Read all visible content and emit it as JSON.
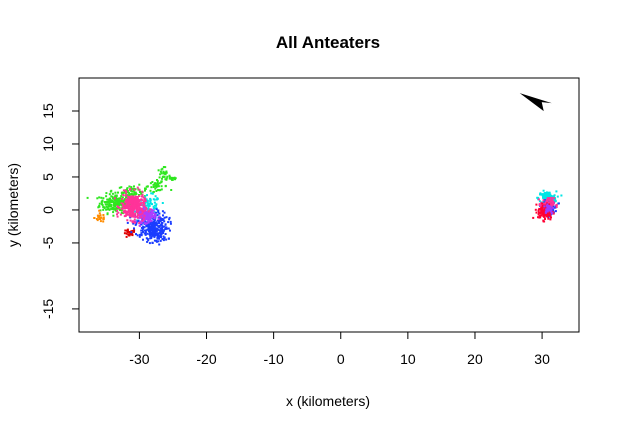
{
  "chart_data": {
    "type": "scatter",
    "title": "All Anteaters",
    "xlabel": "x (kilometers)",
    "ylabel": "y (kilometers)",
    "xlim": [
      -39,
      35.5
    ],
    "ylim": [
      -18.5,
      20
    ],
    "xticks": [
      -30,
      -20,
      -10,
      0,
      10,
      20,
      30
    ],
    "yticks": [
      -15,
      -5,
      0,
      5,
      10,
      15
    ],
    "grid": false,
    "legend": "none",
    "north_arrow": {
      "x": 29.5,
      "y": 16.5,
      "pointing": "north-west"
    },
    "series": [
      {
        "color": "#2ee61f",
        "clusters": [
          {
            "cx": -33.5,
            "cy": 1.0,
            "rx": 2.2,
            "ry": 1.3,
            "n": 220
          },
          {
            "cx": -31.0,
            "cy": 2.8,
            "rx": 2.0,
            "ry": 0.8,
            "n": 60
          },
          {
            "cx": -27.5,
            "cy": 3.6,
            "rx": 1.6,
            "ry": 0.6,
            "n": 30
          },
          {
            "cx": -26.5,
            "cy": 5.0,
            "rx": 1.0,
            "ry": 1.4,
            "n": 35
          },
          {
            "cx": -25.0,
            "cy": 4.8,
            "rx": 0.6,
            "ry": 0.4,
            "n": 12
          }
        ]
      },
      {
        "color": "#ff8c00",
        "clusters": [
          {
            "cx": -35.8,
            "cy": -1.2,
            "rx": 0.8,
            "ry": 0.6,
            "n": 25
          }
        ]
      },
      {
        "color": "#e00000",
        "clusters": [
          {
            "cx": -31.5,
            "cy": -3.6,
            "rx": 0.8,
            "ry": 0.6,
            "n": 25
          }
        ]
      },
      {
        "color": "#00e5e5",
        "clusters": [
          {
            "cx": -28.5,
            "cy": 0.5,
            "rx": 1.5,
            "ry": 1.5,
            "n": 90
          },
          {
            "cx": 30.8,
            "cy": 1.8,
            "rx": 1.2,
            "ry": 0.9,
            "n": 140
          }
        ]
      },
      {
        "color": "#1a3cff",
        "clusters": [
          {
            "cx": -28.2,
            "cy": -2.2,
            "rx": 2.2,
            "ry": 1.8,
            "n": 260
          },
          {
            "cx": -27.5,
            "cy": -3.8,
            "rx": 1.6,
            "ry": 1.0,
            "n": 80
          },
          {
            "cx": 31.2,
            "cy": 0.4,
            "rx": 0.9,
            "ry": 0.9,
            "n": 60
          }
        ]
      },
      {
        "color": "#b03cff",
        "clusters": [
          {
            "cx": -29.0,
            "cy": -0.8,
            "rx": 1.3,
            "ry": 1.0,
            "n": 140
          }
        ]
      },
      {
        "color": "#ff3399",
        "clusters": [
          {
            "cx": -31.0,
            "cy": 0.5,
            "rx": 1.6,
            "ry": 1.8,
            "n": 320
          },
          {
            "cx": 30.8,
            "cy": 0.9,
            "rx": 0.9,
            "ry": 0.8,
            "n": 80
          }
        ]
      },
      {
        "color": "#ff0033",
        "clusters": [
          {
            "cx": 30.5,
            "cy": -0.3,
            "rx": 1.0,
            "ry": 1.1,
            "n": 130
          }
        ]
      },
      {
        "color": "#9b3cff",
        "clusters": [
          {
            "cx": 31.0,
            "cy": 0.2,
            "rx": 0.7,
            "ry": 0.7,
            "n": 40
          }
        ]
      }
    ]
  }
}
